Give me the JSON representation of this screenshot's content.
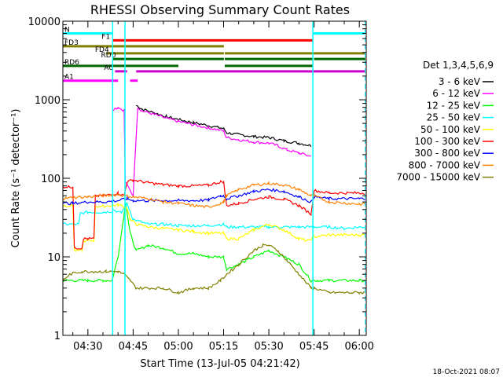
{
  "chart_data": {
    "type": "line",
    "title": "RHESSI Observing Summary Count Rates",
    "xlabel": "Start Time (13-Jul-05 04:21:42)",
    "ylabel": "Count Rate (s⁻¹ detector⁻¹)",
    "ylog": true,
    "ylim": [
      1,
      10000
    ],
    "xlim_minutes": [
      21.7,
      122.3
    ],
    "x_ticks": [
      {
        "label": "04:30",
        "min": 30
      },
      {
        "label": "04:45",
        "min": 45
      },
      {
        "label": "05:00",
        "min": 60
      },
      {
        "label": "05:15",
        "min": 75
      },
      {
        "label": "05:30",
        "min": 90
      },
      {
        "label": "05:45",
        "min": 105
      },
      {
        "label": "06:00",
        "min": 120
      }
    ],
    "y_ticks": [
      {
        "label": "1",
        "v": 1
      },
      {
        "label": "10",
        "v": 10
      },
      {
        "label": "100",
        "v": 100
      },
      {
        "label": "1000",
        "v": 1000
      },
      {
        "label": "10000",
        "v": 10000
      }
    ],
    "legend_title": "Det 1,3,4,5,6,9",
    "legend_placement": "right",
    "series": [
      {
        "name": "3 - 6 keV",
        "color": "#000000",
        "points": [
          [
            46,
            850
          ],
          [
            48,
            760
          ],
          [
            52,
            680
          ],
          [
            56,
            610
          ],
          [
            60,
            560
          ],
          [
            65,
            510
          ],
          [
            70,
            470
          ],
          [
            75,
            430
          ],
          [
            76,
            380
          ],
          [
            80,
            360
          ],
          [
            85,
            340
          ],
          [
            90,
            330
          ],
          [
            95,
            300
          ],
          [
            100,
            280
          ],
          [
            104,
            260
          ]
        ]
      },
      {
        "name": "6 - 12 keV",
        "color": "#ff00ff",
        "points": [
          [
            38,
            750
          ],
          [
            40,
            800
          ],
          [
            42,
            730
          ],
          [
            42.4,
            90
          ],
          [
            45,
            60
          ],
          [
            46.5,
            800
          ],
          [
            48,
            720
          ],
          [
            52,
            650
          ],
          [
            56,
            580
          ],
          [
            60,
            530
          ],
          [
            65,
            480
          ],
          [
            70,
            440
          ],
          [
            75,
            400
          ],
          [
            76,
            330
          ],
          [
            80,
            310
          ],
          [
            85,
            290
          ],
          [
            90,
            280
          ],
          [
            93,
            260
          ],
          [
            96,
            230
          ],
          [
            100,
            210
          ],
          [
            104,
            190
          ]
        ]
      },
      {
        "name": "12 - 25 keV",
        "color": "#00ff00",
        "points": [
          [
            21.7,
            5
          ],
          [
            30,
            5
          ],
          [
            35,
            5
          ],
          [
            38,
            5
          ],
          [
            40,
            10
          ],
          [
            42,
            35
          ],
          [
            42.5,
            50
          ],
          [
            44,
            20
          ],
          [
            46,
            12
          ],
          [
            50,
            14
          ],
          [
            55,
            13
          ],
          [
            60,
            11
          ],
          [
            65,
            11
          ],
          [
            70,
            10
          ],
          [
            75,
            10
          ],
          [
            76,
            7
          ],
          [
            80,
            8
          ],
          [
            85,
            10
          ],
          [
            90,
            12
          ],
          [
            95,
            10
          ],
          [
            100,
            8
          ],
          [
            104,
            5
          ],
          [
            106,
            5
          ],
          [
            110,
            5
          ],
          [
            120,
            5
          ],
          [
            122,
            5
          ]
        ]
      },
      {
        "name": "25 - 50 keV",
        "color": "#00ffff",
        "points": [
          [
            21.7,
            26
          ],
          [
            27,
            26
          ],
          [
            27.5,
            36
          ],
          [
            30,
            37
          ],
          [
            35,
            37
          ],
          [
            38,
            38
          ],
          [
            38.4,
            40
          ],
          [
            41,
            36
          ],
          [
            43,
            48
          ],
          [
            45,
            30
          ],
          [
            50,
            26
          ],
          [
            55,
            26
          ],
          [
            60,
            25
          ],
          [
            65,
            25
          ],
          [
            70,
            25
          ],
          [
            75,
            26
          ],
          [
            76,
            24
          ],
          [
            80,
            24
          ],
          [
            85,
            24
          ],
          [
            90,
            24
          ],
          [
            95,
            24
          ],
          [
            100,
            24
          ],
          [
            105,
            24
          ],
          [
            110,
            24
          ],
          [
            115,
            23
          ],
          [
            120,
            24
          ],
          [
            122,
            24
          ]
        ]
      },
      {
        "name": "50 - 100 keV",
        "color": "#ffff00",
        "points": [
          [
            21.7,
            45
          ],
          [
            25,
            45
          ],
          [
            25.5,
            12
          ],
          [
            28,
            12
          ],
          [
            28.5,
            16
          ],
          [
            30,
            16
          ],
          [
            32,
            16
          ],
          [
            32.5,
            44
          ],
          [
            35,
            44
          ],
          [
            38,
            45
          ],
          [
            40,
            46
          ],
          [
            43,
            42
          ],
          [
            44,
            30
          ],
          [
            46,
            26
          ],
          [
            50,
            24
          ],
          [
            55,
            23
          ],
          [
            60,
            22
          ],
          [
            65,
            21
          ],
          [
            70,
            20
          ],
          [
            75,
            20
          ],
          [
            76,
            17
          ],
          [
            80,
            17
          ],
          [
            85,
            22
          ],
          [
            90,
            26
          ],
          [
            95,
            22
          ],
          [
            100,
            17
          ],
          [
            103,
            16
          ],
          [
            105,
            18
          ],
          [
            110,
            19
          ],
          [
            120,
            19
          ],
          [
            122,
            19
          ]
        ]
      },
      {
        "name": "100 - 300 keV",
        "color": "#ff0000",
        "points": [
          [
            21.7,
            78
          ],
          [
            25,
            78
          ],
          [
            25.5,
            13
          ],
          [
            28,
            13
          ],
          [
            28.5,
            17
          ],
          [
            30,
            17
          ],
          [
            32,
            17
          ],
          [
            32.5,
            60
          ],
          [
            35,
            60
          ],
          [
            38,
            62
          ],
          [
            40,
            65
          ],
          [
            42,
            60
          ],
          [
            43,
            90
          ],
          [
            45,
            95
          ],
          [
            50,
            88
          ],
          [
            55,
            83
          ],
          [
            60,
            80
          ],
          [
            65,
            80
          ],
          [
            70,
            82
          ],
          [
            74,
            90
          ],
          [
            75,
            90
          ],
          [
            76,
            45
          ],
          [
            80,
            48
          ],
          [
            85,
            54
          ],
          [
            90,
            58
          ],
          [
            95,
            54
          ],
          [
            100,
            45
          ],
          [
            104,
            35
          ],
          [
            105,
            70
          ],
          [
            110,
            65
          ],
          [
            120,
            65
          ],
          [
            122,
            65
          ]
        ]
      },
      {
        "name": "300 - 800 keV",
        "color": "#0000ff",
        "points": [
          [
            21.7,
            48
          ],
          [
            25,
            48
          ],
          [
            30,
            50
          ],
          [
            35,
            50
          ],
          [
            38,
            51
          ],
          [
            40,
            52
          ],
          [
            43,
            55
          ],
          [
            45,
            52
          ],
          [
            50,
            52
          ],
          [
            55,
            52
          ],
          [
            60,
            52
          ],
          [
            65,
            52
          ],
          [
            70,
            53
          ],
          [
            74,
            60
          ],
          [
            75,
            60
          ],
          [
            76,
            55
          ],
          [
            80,
            60
          ],
          [
            85,
            68
          ],
          [
            90,
            72
          ],
          [
            95,
            68
          ],
          [
            100,
            58
          ],
          [
            104,
            50
          ],
          [
            105,
            58
          ],
          [
            110,
            55
          ],
          [
            120,
            55
          ],
          [
            122,
            55
          ]
        ]
      },
      {
        "name": "800 - 7000 keV",
        "color": "#ff8000",
        "points": [
          [
            21.7,
            55
          ],
          [
            25,
            57
          ],
          [
            30,
            58
          ],
          [
            35,
            60
          ],
          [
            38,
            61
          ],
          [
            40,
            62
          ],
          [
            45,
            58
          ],
          [
            50,
            55
          ],
          [
            55,
            50
          ],
          [
            60,
            48
          ],
          [
            65,
            45
          ],
          [
            70,
            43
          ],
          [
            74,
            48
          ],
          [
            75,
            50
          ],
          [
            76,
            60
          ],
          [
            80,
            72
          ],
          [
            85,
            82
          ],
          [
            90,
            86
          ],
          [
            95,
            82
          ],
          [
            100,
            72
          ],
          [
            104,
            60
          ],
          [
            105,
            60
          ],
          [
            110,
            50
          ],
          [
            120,
            47
          ],
          [
            122,
            47
          ]
        ]
      },
      {
        "name": "7000 - 15000 keV",
        "color": "#808000",
        "points": [
          [
            21.7,
            5
          ],
          [
            24,
            6
          ],
          [
            28,
            6.5
          ],
          [
            32,
            6.5
          ],
          [
            36,
            6.5
          ],
          [
            40,
            6.5
          ],
          [
            42,
            6
          ],
          [
            44,
            5
          ],
          [
            46,
            4
          ],
          [
            50,
            4
          ],
          [
            55,
            4
          ],
          [
            60,
            3.5
          ],
          [
            65,
            4
          ],
          [
            70,
            4
          ],
          [
            74,
            5
          ],
          [
            76,
            6
          ],
          [
            80,
            8
          ],
          [
            85,
            12
          ],
          [
            88,
            14
          ],
          [
            90,
            14
          ],
          [
            93,
            12
          ],
          [
            96,
            9
          ],
          [
            100,
            6
          ],
          [
            104,
            4
          ],
          [
            105,
            4
          ],
          [
            110,
            3.5
          ],
          [
            120,
            3.5
          ],
          [
            122,
            3.5
          ]
        ]
      }
    ],
    "intervals": [
      {
        "label": "N",
        "color": "#00ffff",
        "level": 7000,
        "segments": [
          [
            21.7,
            38.2
          ],
          [
            104.6,
            121.9
          ]
        ]
      },
      {
        "label": "F1",
        "color": "#ff0000",
        "level": 5700,
        "segments": [
          [
            38.2,
            104.6
          ]
        ]
      },
      {
        "label": "FD3",
        "color": "#808000",
        "level": 4800,
        "segments": [
          [
            21.7,
            75.1
          ]
        ]
      },
      {
        "label": "FD4",
        "color": "#808000",
        "level": 3900,
        "segments": [
          [
            36,
            75.1
          ],
          [
            75.4,
            122
          ]
        ]
      },
      {
        "label": "RD0",
        "color": "#006600",
        "level": 3300,
        "segments": [
          [
            38,
            75.1
          ],
          [
            75.4,
            104.5
          ],
          [
            105,
            122
          ]
        ]
      },
      {
        "label": "RD6",
        "color": "#006600",
        "level": 2700,
        "segments": [
          [
            21.7,
            60
          ],
          [
            75.4,
            104.5
          ]
        ]
      },
      {
        "label": "A0",
        "color": "#cc00cc",
        "level": 2300,
        "segments": [
          [
            39,
            43
          ],
          [
            46,
            122
          ]
        ]
      },
      {
        "label": "A1",
        "color": "#ff00ff",
        "level": 1750,
        "segments": [
          [
            21.7,
            40
          ],
          [
            44,
            46.5
          ]
        ]
      }
    ],
    "vlines_cyan_solid": [
      38.2,
      42.3,
      104.6
    ],
    "vlines_cyan_dashed": [
      38.2,
      121.9
    ],
    "timestamp": "18-Oct-2021 08:07"
  }
}
